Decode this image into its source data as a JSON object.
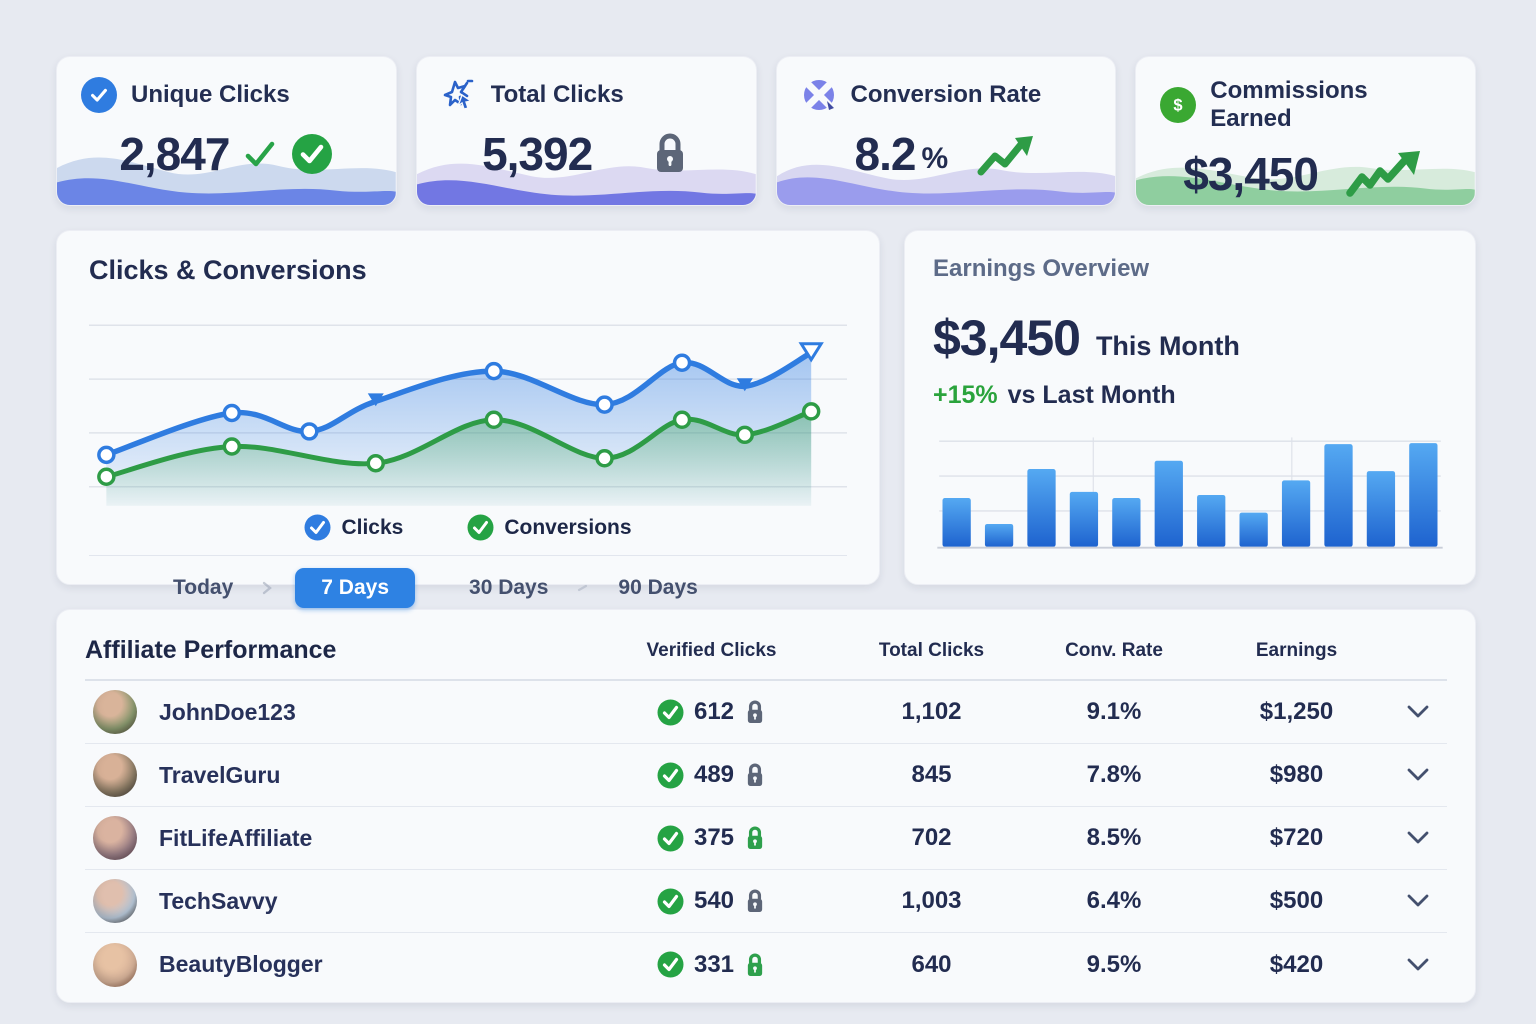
{
  "colors": {
    "page_bg": "#e7eaf1",
    "card_bg": "#f8fafc",
    "navy_text": "#232e52",
    "muted_text": "#5d6b88",
    "accent_blue": "#2f7ce0",
    "accent_green": "#2e9c46",
    "check_circle_green": "#25a344",
    "lock_gray": "#5d6678",
    "lock_green": "#2ea04c",
    "active_range_bg": "#2e82e3",
    "bar_top": "#55a9f2",
    "bar_bottom": "#1e63cf"
  },
  "stat_cards": [
    {
      "label": "Unique Clicks",
      "value": "2,847",
      "suffix": "",
      "icon": "badge-check-icon",
      "badges": "check-mark + check-circle"
    },
    {
      "label": "Total Clicks",
      "value": "5,392",
      "suffix": "",
      "icon": "click-burst-icon",
      "badges": "lock-gray"
    },
    {
      "label": "Conversion Rate",
      "value": "8.2",
      "suffix": "%",
      "icon": "segmented-circle-icon",
      "badges": "trend-up-arrow"
    },
    {
      "label": "Commissions Earned",
      "value": "$3,450",
      "suffix": "",
      "icon": "dollar-circle-icon",
      "badges": "trend-up-arrow"
    }
  ],
  "clicks_card": {
    "title": "Clicks & Conversions",
    "legend": [
      {
        "label": "Clicks",
        "color": "#2f7ce0"
      },
      {
        "label": "Conversions",
        "color": "#2e9c46"
      }
    ],
    "ranges": [
      {
        "label": "Today",
        "active": false
      },
      {
        "label": "7 Days",
        "active": true
      },
      {
        "label": "30 Days",
        "active": false
      },
      {
        "label": "90 Days",
        "active": false
      }
    ]
  },
  "earnings_card": {
    "title": "Earnings Overview",
    "amount": "$3,450",
    "period": "This Month",
    "delta": "+15%",
    "delta_label": "vs Last Month"
  },
  "table": {
    "title": "Affiliate Performance",
    "columns": [
      "Verified Clicks",
      "Total Clicks",
      "Conv. Rate",
      "Earnings"
    ],
    "rows": [
      {
        "name": "JohnDoe123",
        "verified": "612",
        "lock": "gray",
        "total": "1,102",
        "rate": "9.1%",
        "earnings": "$1,250"
      },
      {
        "name": "TravelGuru",
        "verified": "489",
        "lock": "gray",
        "total": "845",
        "rate": "7.8%",
        "earnings": "$980"
      },
      {
        "name": "FitLifeAffiliate",
        "verified": "375",
        "lock": "green",
        "total": "702",
        "rate": "8.5%",
        "earnings": "$720"
      },
      {
        "name": "TechSavvy",
        "verified": "540",
        "lock": "gray",
        "total": "1,003",
        "rate": "6.4%",
        "earnings": "$500"
      },
      {
        "name": "BeautyBlogger",
        "verified": "331",
        "lock": "green",
        "total": "640",
        "rate": "9.5%",
        "earnings": "$420"
      }
    ]
  },
  "chart_data": [
    {
      "type": "line",
      "title": "Clicks & Conversions",
      "xlabel": "",
      "ylabel": "",
      "ylim": [
        0,
        100
      ],
      "grid": true,
      "legend_position": "bottom",
      "series": [
        {
          "name": "Clicks",
          "color": "#2f7ce0",
          "x": [
            1,
            18,
            28.5,
            37.5,
            53.5,
            68.5,
            79,
            87.5,
            96.5
          ],
          "y": [
            22,
            47,
            36,
            54,
            72,
            52,
            77,
            63,
            83
          ],
          "markers": [
            "circle",
            "circle",
            "circle",
            "triangle",
            "circle",
            "circle",
            "circle",
            "triangle",
            "triangle-open"
          ]
        },
        {
          "name": "Conversions",
          "color": "#2e9c46",
          "x": [
            1,
            18,
            37.5,
            53.5,
            68.5,
            79,
            87.5,
            96.5
          ],
          "y": [
            9,
            27,
            17,
            43,
            20,
            43,
            34,
            48
          ],
          "markers": [
            "circle",
            "circle",
            "circle",
            "circle",
            "circle",
            "circle",
            "circle",
            "circle"
          ]
        }
      ]
    },
    {
      "type": "bar",
      "title": "Earnings Overview monthly bars",
      "categories": [
        "",
        "",
        "",
        "",
        "",
        "",
        "",
        "",
        "",
        "",
        "",
        ""
      ],
      "values": [
        47,
        22,
        75,
        53,
        47,
        83,
        50,
        33,
        64,
        99,
        73,
        100
      ],
      "ylim": [
        0,
        100
      ],
      "grid": true,
      "bar_color_top": "#55a9f2",
      "bar_color_bottom": "#1e63cf"
    }
  ]
}
